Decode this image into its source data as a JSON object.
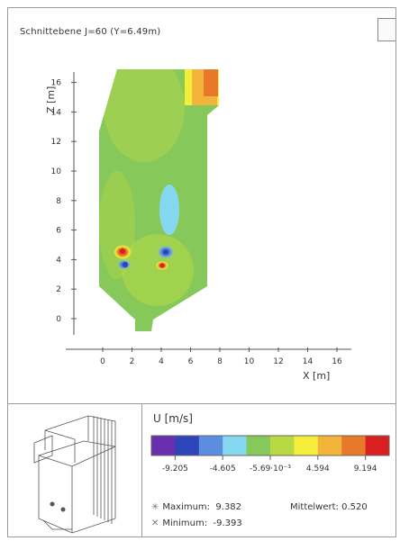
{
  "header": {
    "title": "Schnittebene J=60 (Y=6.49m)",
    "corner_icon": "view-orientation-icon"
  },
  "chart_data": {
    "type": "heatmap",
    "title": "Schnittebene J=60 (Y=6.49m)",
    "xlabel": "X [m]",
    "ylabel": "Z [m]",
    "xlim": [
      -2,
      17
    ],
    "ylim": [
      -2,
      17
    ],
    "x_ticks": [
      0,
      2,
      4,
      6,
      8,
      10,
      12,
      14,
      16
    ],
    "y_ticks": [
      0,
      2,
      4,
      6,
      8,
      10,
      12,
      14,
      16
    ],
    "grid": false,
    "field": "U [m/s]",
    "colorbar": {
      "title": "U [m/s]",
      "colors": [
        "#6a2fb0",
        "#2d45b8",
        "#5d8de0",
        "#86d8f0",
        "#86c95a",
        "#b8d844",
        "#f4ee3a",
        "#f2b43a",
        "#e8782a",
        "#d82020"
      ],
      "labels": [
        "-9.205",
        "-4.605",
        "-5.69·10⁻³",
        "4.594",
        "9.194"
      ]
    },
    "statistics": {
      "maximum_label": "Maximum:",
      "maximum": "9.382",
      "minimum_label": "Minimum:",
      "minimum": "-9.393",
      "mean_label": "Mittelwert:",
      "mean": "0.520"
    }
  }
}
